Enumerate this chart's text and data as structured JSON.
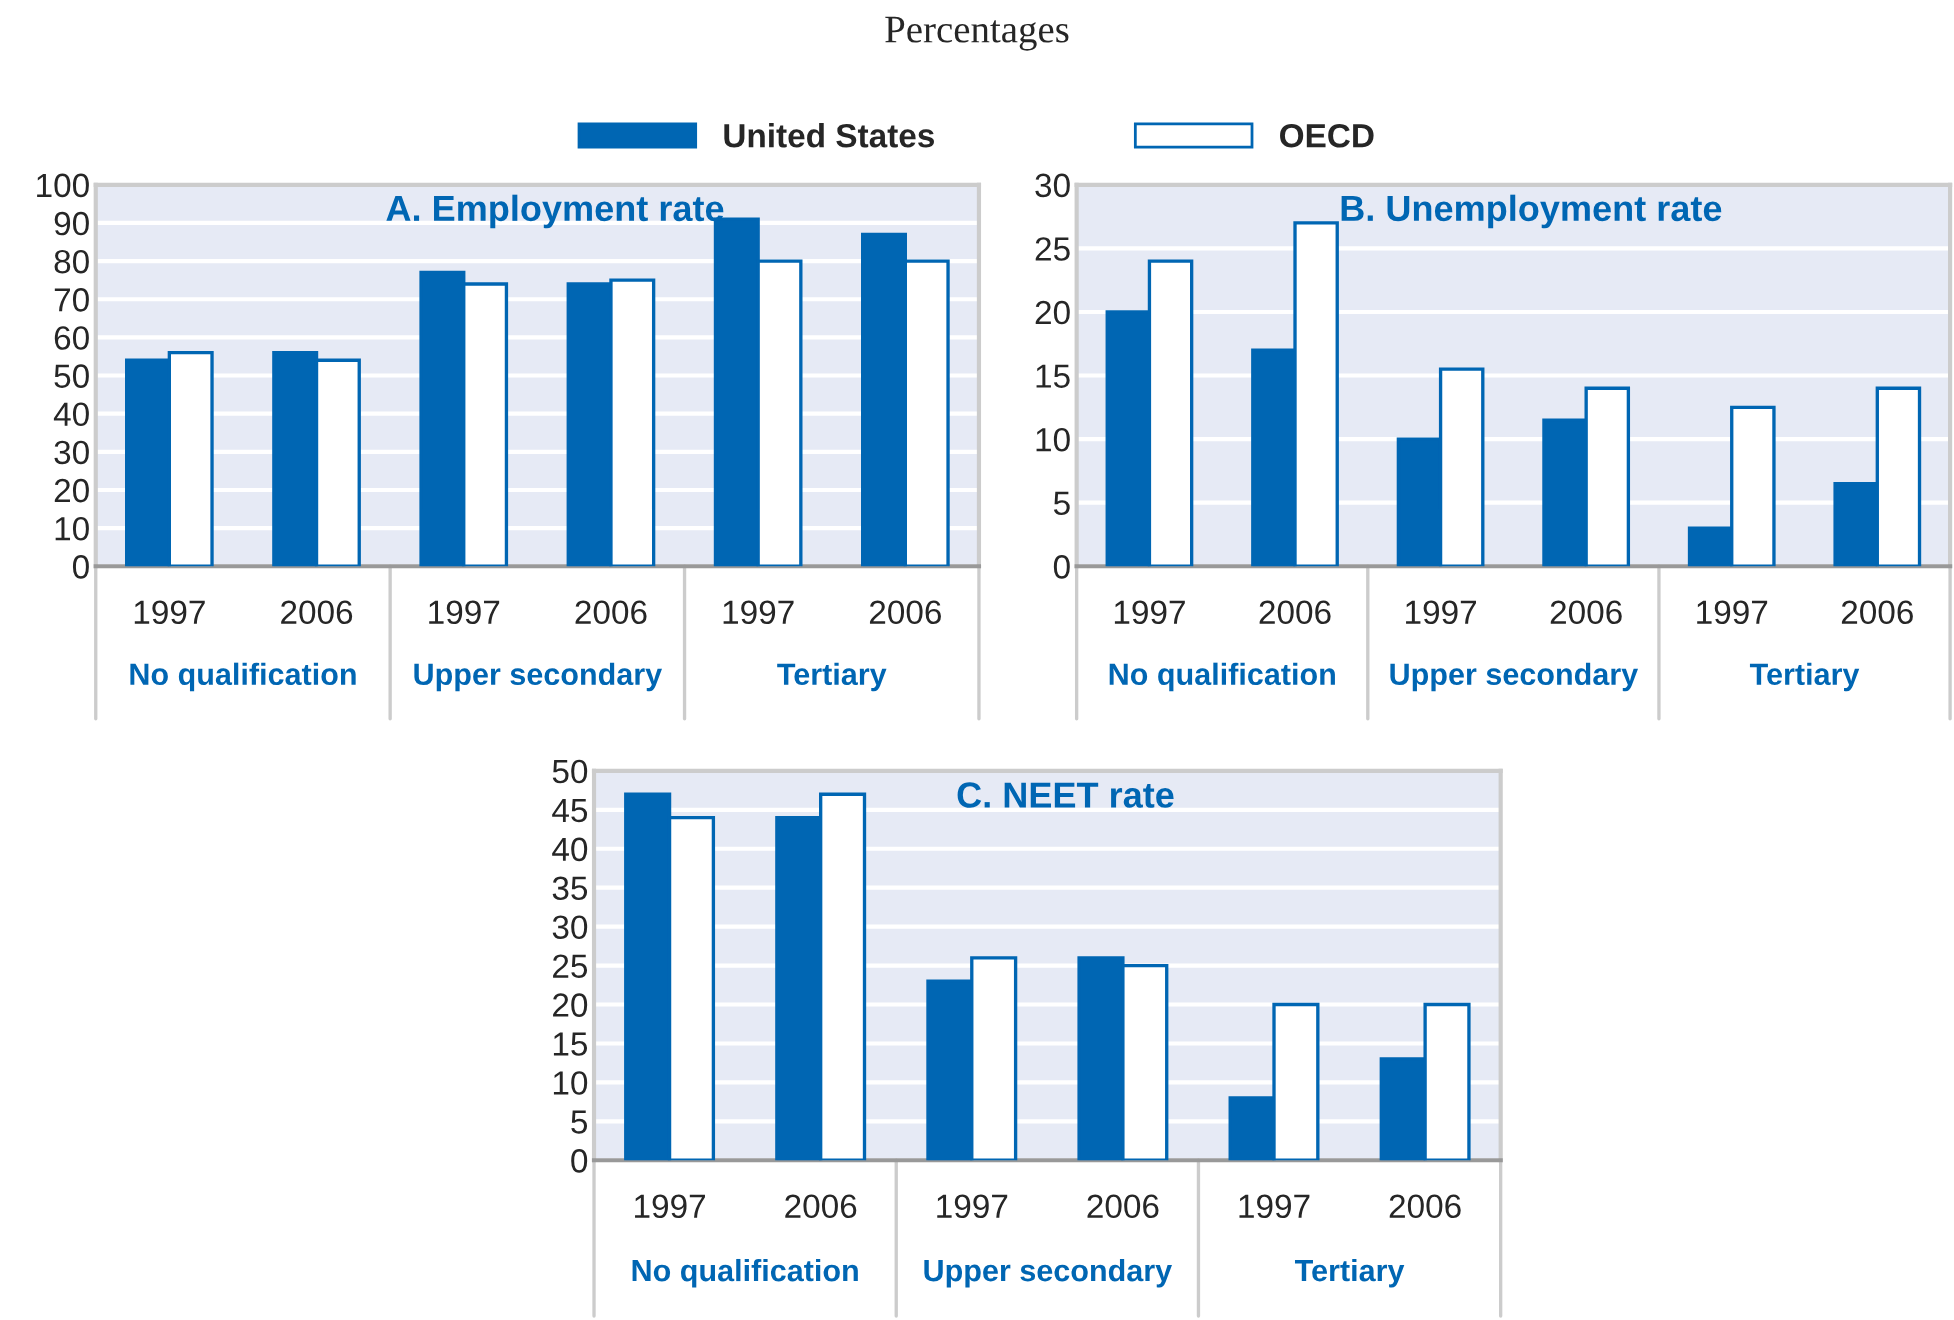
{
  "chart_data": [
    {
      "type": "bar",
      "title": "A. Employment rate",
      "subtitle": "Percentages",
      "categories": [
        "1997",
        "2006",
        "1997",
        "2006",
        "1997",
        "2006"
      ],
      "annotations": [
        "No qualification",
        "Upper secondary",
        "Tertiary"
      ],
      "ylim": [
        0,
        100
      ],
      "yticks": [
        0,
        10,
        20,
        30,
        40,
        50,
        60,
        70,
        80,
        90,
        100
      ],
      "grid": "y",
      "legend": "top",
      "series": [
        {
          "name": "United States",
          "color": "#0066b3",
          "values": [
            54,
            56,
            77,
            74,
            91,
            87
          ]
        },
        {
          "name": "OECD",
          "color": "#ffffff",
          "values": [
            56,
            54,
            74,
            75,
            80,
            80
          ]
        }
      ]
    },
    {
      "type": "bar",
      "title": "B. Unemployment rate",
      "categories": [
        "1997",
        "2006",
        "1997",
        "2006",
        "1997",
        "2006"
      ],
      "annotations": [
        "No qualification",
        "Upper secondary",
        "Tertiary"
      ],
      "ylim": [
        0,
        30
      ],
      "yticks": [
        0,
        5,
        10,
        15,
        20,
        25,
        30
      ],
      "grid": "y",
      "series": [
        {
          "color": "#0066b3",
          "values": [
            20,
            17,
            10,
            11.5,
            3,
            6.5
          ]
        },
        {
          "color": "#ffffff",
          "values": [
            24,
            27,
            15.5,
            14,
            12.5,
            14
          ]
        }
      ]
    },
    {
      "type": "bar",
      "title": "C. NEET rate",
      "categories": [
        "1997",
        "2006",
        "1997",
        "2006",
        "1997",
        "2006"
      ],
      "annotations": [
        "No qualification",
        "Upper secondary",
        "Tertiary"
      ],
      "ylim": [
        0,
        50
      ],
      "yticks": [
        0,
        5,
        10,
        15,
        20,
        25,
        30,
        35,
        40,
        45,
        50
      ],
      "grid": "y",
      "series": [
        {
          "color": "#0066b3",
          "values": [
            47,
            44,
            23,
            26,
            8,
            13
          ]
        },
        {
          "color": "#ffffff",
          "values": [
            44,
            47,
            26,
            25,
            20,
            20
          ]
        }
      ]
    }
  ]
}
